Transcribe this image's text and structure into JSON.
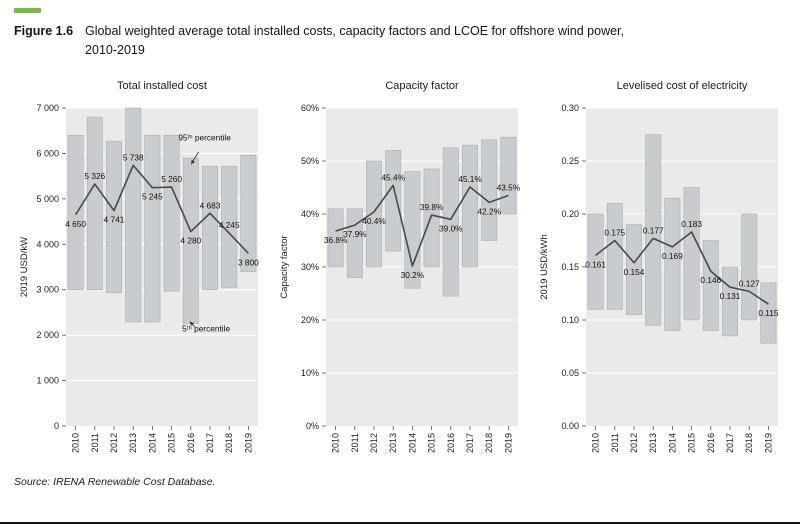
{
  "figure": {
    "label": "Figure 1.6",
    "title_line1": "Global weighted average total installed costs, capacity factors and LCOE for offshore wind power,",
    "title_line2": "2010-2019",
    "source": "Source: IRENA Renewable Cost Database."
  },
  "colors": {
    "accent_green": "#7ab648",
    "panel_bg": "#e9eaec",
    "bar_fill": "#c9cccf",
    "bar_border": "#a3a7ab",
    "line": "#46494d",
    "rule": "#15161a"
  },
  "chart_data": [
    {
      "type": "range-bar-line",
      "title": "Total installed cost",
      "ylabel": "2019 USD/kW",
      "x": [
        "2010",
        "2011",
        "2012",
        "2013",
        "2014",
        "2015",
        "2016",
        "2017",
        "2018",
        "2019"
      ],
      "ylim": [
        0,
        7000
      ],
      "yticks": [
        0,
        1000,
        2000,
        3000,
        4000,
        5000,
        6000,
        7000
      ],
      "ytick_labels": [
        "0",
        "1 000",
        "2 000",
        "3 000",
        "4 000",
        "5 000",
        "6 000",
        "7 000"
      ],
      "bar_ranges": [
        [
          3000,
          6400
        ],
        [
          3000,
          6800
        ],
        [
          2930,
          6270
        ],
        [
          2290,
          7000
        ],
        [
          2290,
          6400
        ],
        [
          2970,
          6400
        ],
        [
          2250,
          5900
        ],
        [
          3000,
          5720
        ],
        [
          3040,
          5720
        ],
        [
          3400,
          5960
        ]
      ],
      "line_values": [
        4650,
        5326,
        4741,
        5738,
        5245,
        5260,
        4280,
        4683,
        4245,
        3800
      ],
      "point_labels": [
        "4 650",
        "5 326",
        "4 741",
        "5 738",
        "5 245",
        "5 260",
        "4 280",
        "4 683",
        "4 245",
        "3 800"
      ],
      "label_side": [
        "below",
        "above",
        "below",
        "above",
        "below",
        "above",
        "below",
        "above",
        "above",
        "below"
      ],
      "annotations": [
        {
          "text": "95ᵗʰ percentile",
          "xi": 5.35,
          "y": 6280,
          "arrow": {
            "from": [
              6.4,
              6030
            ],
            "to": [
              6.02,
              5760
            ]
          }
        },
        {
          "text": "5ᵗʰ percentile",
          "xi": 5.55,
          "y": 2080,
          "arrow": {
            "from": [
              6.2,
              2180
            ],
            "to": [
              5.95,
              2300
            ]
          }
        }
      ]
    },
    {
      "type": "range-bar-line",
      "title": "Capacity factor",
      "ylabel": "Capacity factor",
      "x": [
        "2010",
        "2011",
        "2012",
        "2013",
        "2014",
        "2015",
        "2016",
        "2017",
        "2018",
        "2019"
      ],
      "ylim": [
        0,
        60
      ],
      "yticks": [
        0,
        10,
        20,
        30,
        40,
        50,
        60
      ],
      "ytick_labels": [
        "0%",
        "10%",
        "20%",
        "30%",
        "40%",
        "50%",
        "60%"
      ],
      "bar_ranges": [
        [
          30,
          41
        ],
        [
          28,
          41
        ],
        [
          30,
          50
        ],
        [
          33,
          52
        ],
        [
          26,
          48
        ],
        [
          30,
          48.5
        ],
        [
          24.5,
          52.5
        ],
        [
          30,
          53
        ],
        [
          35,
          54
        ],
        [
          40,
          54.5
        ]
      ],
      "line_values": [
        36.8,
        37.9,
        40.4,
        45.4,
        30.2,
        39.8,
        39.0,
        45.1,
        42.2,
        43.5
      ],
      "point_labels": [
        "36.8%",
        "37.9%",
        "40.4%",
        "45.4%",
        "30.2%",
        "39.8%",
        "39.0%",
        "45.1%",
        "42.2%",
        "43.5%"
      ],
      "label_side": [
        "below",
        "below",
        "below",
        "above",
        "below",
        "above",
        "below",
        "above",
        "below",
        "above"
      ],
      "annotations": []
    },
    {
      "type": "range-bar-line",
      "title": "Levelised cost of electricity",
      "ylabel": "2019 USD/kWh",
      "x": [
        "2010",
        "2011",
        "2012",
        "2013",
        "2014",
        "2015",
        "2016",
        "2017",
        "2018",
        "2019"
      ],
      "ylim": [
        0,
        0.3
      ],
      "yticks": [
        0,
        0.05,
        0.1,
        0.15,
        0.2,
        0.25,
        0.3
      ],
      "ytick_labels": [
        "0.00",
        "0.05",
        "0.10",
        "0.15",
        "0.20",
        "0.25",
        "0.30"
      ],
      "bar_ranges": [
        [
          0.11,
          0.2
        ],
        [
          0.11,
          0.21
        ],
        [
          0.105,
          0.19
        ],
        [
          0.095,
          0.275
        ],
        [
          0.09,
          0.215
        ],
        [
          0.1,
          0.225
        ],
        [
          0.09,
          0.175
        ],
        [
          0.085,
          0.15
        ],
        [
          0.1,
          0.2
        ],
        [
          0.078,
          0.135
        ]
      ],
      "line_values": [
        0.161,
        0.175,
        0.154,
        0.177,
        0.169,
        0.183,
        0.146,
        0.131,
        0.127,
        0.115
      ],
      "point_labels": [
        "0.161",
        "0.175",
        "0.154",
        "0.177",
        "0.169",
        "0.183",
        "0.146",
        "0.131",
        "0.127",
        "0.115"
      ],
      "label_side": [
        "below",
        "above",
        "below",
        "above",
        "below",
        "above",
        "below",
        "below",
        "above",
        "below"
      ],
      "annotations": []
    }
  ]
}
